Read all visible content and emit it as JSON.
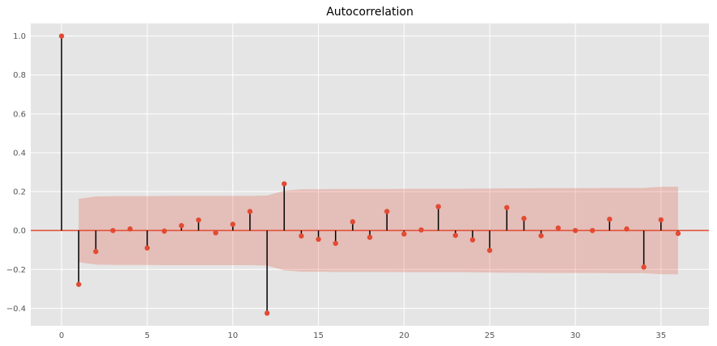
{
  "chart_data": {
    "type": "stem",
    "title": "Autocorrelation",
    "xlabel": "",
    "ylabel": "",
    "xlim": [
      -1.8,
      37.8
    ],
    "ylim": [
      -0.49,
      1.065
    ],
    "x_ticks": [
      0,
      5,
      10,
      15,
      20,
      25,
      30,
      35
    ],
    "y_ticks": [
      -0.4,
      -0.2,
      0.0,
      0.2,
      0.4,
      0.6,
      0.8,
      1.0
    ],
    "x_tick_labels": [
      "0",
      "5",
      "10",
      "15",
      "20",
      "25",
      "30",
      "35"
    ],
    "y_tick_labels": [
      "−0.4",
      "−0.2",
      "0.0",
      "0.2",
      "0.4",
      "0.6",
      "0.8",
      "1.0"
    ],
    "grid": true,
    "lags": [
      0,
      1,
      2,
      3,
      4,
      5,
      6,
      7,
      8,
      9,
      10,
      11,
      12,
      13,
      14,
      15,
      16,
      17,
      18,
      19,
      20,
      21,
      22,
      23,
      24,
      25,
      26,
      27,
      28,
      29,
      30,
      31,
      32,
      33,
      34,
      35,
      36
    ],
    "values": [
      1.0,
      -0.277,
      -0.108,
      0.0,
      0.008,
      -0.09,
      -0.003,
      0.025,
      0.054,
      -0.012,
      0.032,
      0.098,
      -0.425,
      0.24,
      -0.028,
      -0.045,
      -0.066,
      0.045,
      -0.035,
      0.098,
      -0.018,
      0.003,
      0.123,
      -0.025,
      -0.048,
      -0.102,
      0.118,
      0.062,
      -0.027,
      0.013,
      0.0,
      0.0,
      0.058,
      0.008,
      -0.188,
      0.055,
      -0.015
    ],
    "confidence_band": {
      "lags": [
        1,
        2,
        3,
        4,
        5,
        6,
        7,
        8,
        9,
        10,
        11,
        12,
        13,
        14,
        15,
        16,
        17,
        18,
        19,
        20,
        21,
        22,
        23,
        24,
        25,
        26,
        27,
        28,
        29,
        30,
        31,
        32,
        33,
        34,
        35,
        36
      ],
      "upper": [
        0.163,
        0.175,
        0.177,
        0.177,
        0.177,
        0.178,
        0.178,
        0.178,
        0.178,
        0.178,
        0.178,
        0.18,
        0.205,
        0.212,
        0.212,
        0.213,
        0.213,
        0.213,
        0.213,
        0.214,
        0.214,
        0.214,
        0.214,
        0.215,
        0.216,
        0.217,
        0.217,
        0.218,
        0.218,
        0.218,
        0.218,
        0.219,
        0.219,
        0.219,
        0.225,
        0.225
      ]
    },
    "colors": {
      "background": "#e5e5e5",
      "grid": "#ffffff",
      "marker": "#e24a33",
      "stem": "#000000",
      "zero_line": "#e24a33",
      "band": "#e24a33"
    }
  }
}
